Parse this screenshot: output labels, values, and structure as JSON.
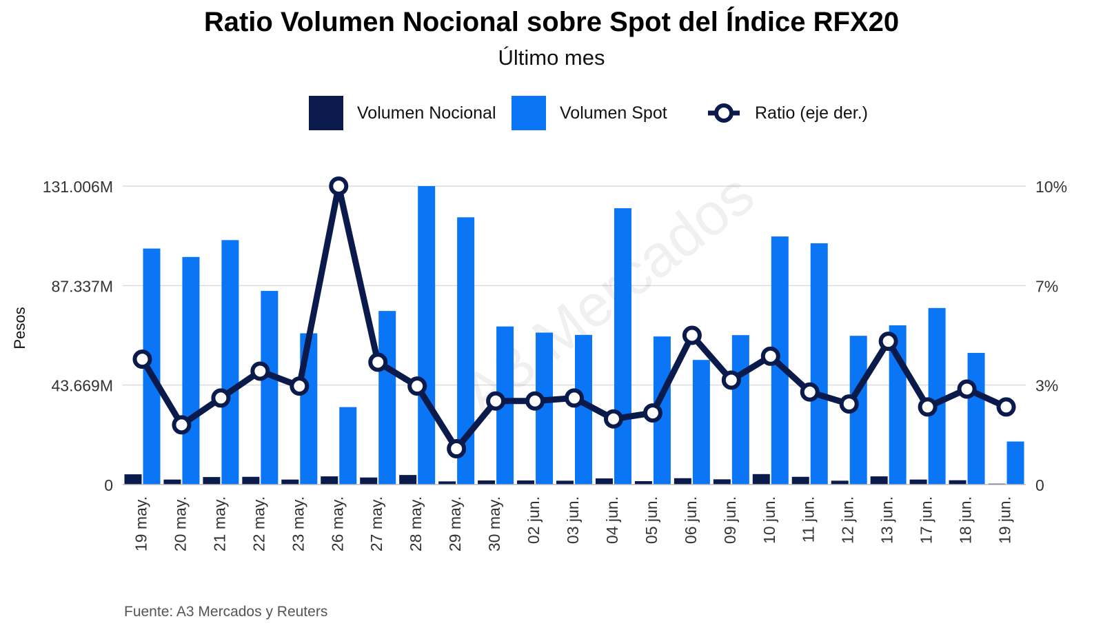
{
  "chart_data": {
    "type": "bar",
    "title": "Ratio Volumen Nocional sobre Spot del Índice RFX20",
    "subtitle": "Último mes",
    "ylabel": "Pesos",
    "ylim": [
      0,
      131006
    ],
    "y_right_lim": [
      0,
      10
    ],
    "yticks_left": [
      "0",
      "43.669M",
      "87.337M",
      "131.006M"
    ],
    "yticks_right": [
      "0",
      "3%",
      "7%",
      "10%"
    ],
    "grid": true,
    "legend_position": "top",
    "categories": [
      "19 may.",
      "20 may.",
      "21 may.",
      "22 may.",
      "23 may.",
      "26 may.",
      "27 may.",
      "28 may.",
      "29 may.",
      "30 may.",
      "02 jun.",
      "03 jun.",
      "04 jun.",
      "05 jun.",
      "06 jun.",
      "09 jun.",
      "10 jun.",
      "11 jun.",
      "12 jun.",
      "13 jun.",
      "17 jun.",
      "18 jun.",
      "19 jun."
    ],
    "series": [
      {
        "name": "Volumen Nocional",
        "type": "bar",
        "axis": "left",
        "color": "#0a1a4a",
        "values": [
          4500,
          2200,
          3300,
          3400,
          2200,
          3600,
          3100,
          4200,
          1400,
          1800,
          1800,
          1700,
          2700,
          1500,
          2800,
          2300,
          4600,
          3400,
          1700,
          3600,
          2200,
          1900,
          400
        ]
      },
      {
        "name": "Volumen Spot",
        "type": "bar",
        "axis": "left",
        "color": "#0a75f5",
        "values": [
          103600,
          99900,
          107300,
          85000,
          66400,
          34000,
          76200,
          131000,
          117300,
          69400,
          66700,
          65700,
          121300,
          65000,
          54700,
          65600,
          108900,
          105900,
          65300,
          69900,
          77500,
          57800,
          18900
        ]
      },
      {
        "name": "Ratio (eje der.)",
        "type": "line",
        "axis": "right",
        "color": "#0a1a4a",
        "values": [
          4.2,
          2.0,
          2.9,
          3.8,
          3.3,
          10.0,
          4.1,
          3.3,
          1.2,
          2.8,
          2.8,
          2.9,
          2.2,
          2.4,
          5.0,
          3.5,
          4.3,
          3.1,
          2.7,
          4.8,
          2.6,
          3.2,
          2.6
        ]
      }
    ]
  },
  "watermark": "A3 Mercados",
  "source": "Fuente: A3 Mercados y Reuters"
}
